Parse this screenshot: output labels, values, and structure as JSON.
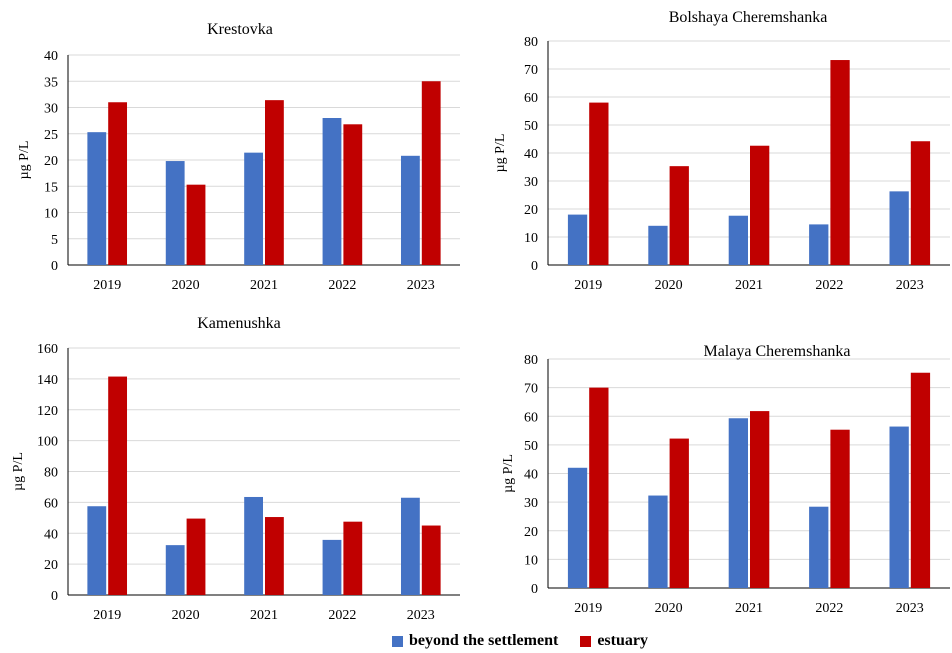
{
  "legend": {
    "series_a": "beyond the settlement",
    "series_b": "estuary",
    "color_a": "#4472C4",
    "color_b": "#C00000"
  },
  "chart_data": [
    {
      "type": "bar",
      "title": "Krestovka",
      "ylabel": "µg P/L",
      "categories": [
        "2019",
        "2020",
        "2021",
        "2022",
        "2023"
      ],
      "ylim": [
        0,
        40
      ],
      "yticks": [
        0,
        5,
        10,
        15,
        20,
        25,
        30,
        35,
        40
      ],
      "grid": true,
      "series": [
        {
          "name": "beyond the settlement",
          "values": [
            25.3,
            19.8,
            21.4,
            28.0,
            20.8
          ]
        },
        {
          "name": "estuary",
          "values": [
            31.0,
            15.3,
            31.4,
            26.8,
            35.0
          ]
        }
      ]
    },
    {
      "type": "bar",
      "title": "Bolshaya Cheremshanka",
      "ylabel": "µg P/L",
      "categories": [
        "2019",
        "2020",
        "2021",
        "2022",
        "2023"
      ],
      "ylim": [
        0,
        80
      ],
      "yticks": [
        0,
        10,
        20,
        30,
        40,
        50,
        60,
        70,
        80
      ],
      "grid": true,
      "series": [
        {
          "name": "beyond the settlement",
          "values": [
            18.0,
            14.0,
            17.6,
            14.5,
            26.3
          ]
        },
        {
          "name": "estuary",
          "values": [
            58.0,
            35.3,
            42.6,
            73.2,
            44.2
          ]
        }
      ]
    },
    {
      "type": "bar",
      "title": "Kamenushka",
      "ylabel": "µg P/L",
      "categories": [
        "2019",
        "2020",
        "2021",
        "2022",
        "2023"
      ],
      "ylim": [
        0,
        160
      ],
      "yticks": [
        0,
        20,
        40,
        60,
        80,
        100,
        120,
        140,
        160
      ],
      "grid": true,
      "series": [
        {
          "name": "beyond the settlement",
          "values": [
            57.5,
            32.3,
            63.5,
            35.7,
            63.0
          ]
        },
        {
          "name": "estuary",
          "values": [
            141.5,
            49.5,
            50.5,
            47.5,
            45.0
          ]
        }
      ]
    },
    {
      "type": "bar",
      "title": "Malaya Cheremshanka",
      "ylabel": "µg P/L",
      "categories": [
        "2019",
        "2020",
        "2021",
        "2022",
        "2023"
      ],
      "ylim": [
        0,
        80
      ],
      "yticks": [
        0,
        10,
        20,
        30,
        40,
        50,
        60,
        70,
        80
      ],
      "grid": true,
      "series": [
        {
          "name": "beyond the settlement",
          "values": [
            42.0,
            32.3,
            59.3,
            28.4,
            56.4
          ]
        },
        {
          "name": "estuary",
          "values": [
            70.0,
            52.2,
            61.8,
            55.3,
            75.2
          ]
        }
      ]
    }
  ]
}
